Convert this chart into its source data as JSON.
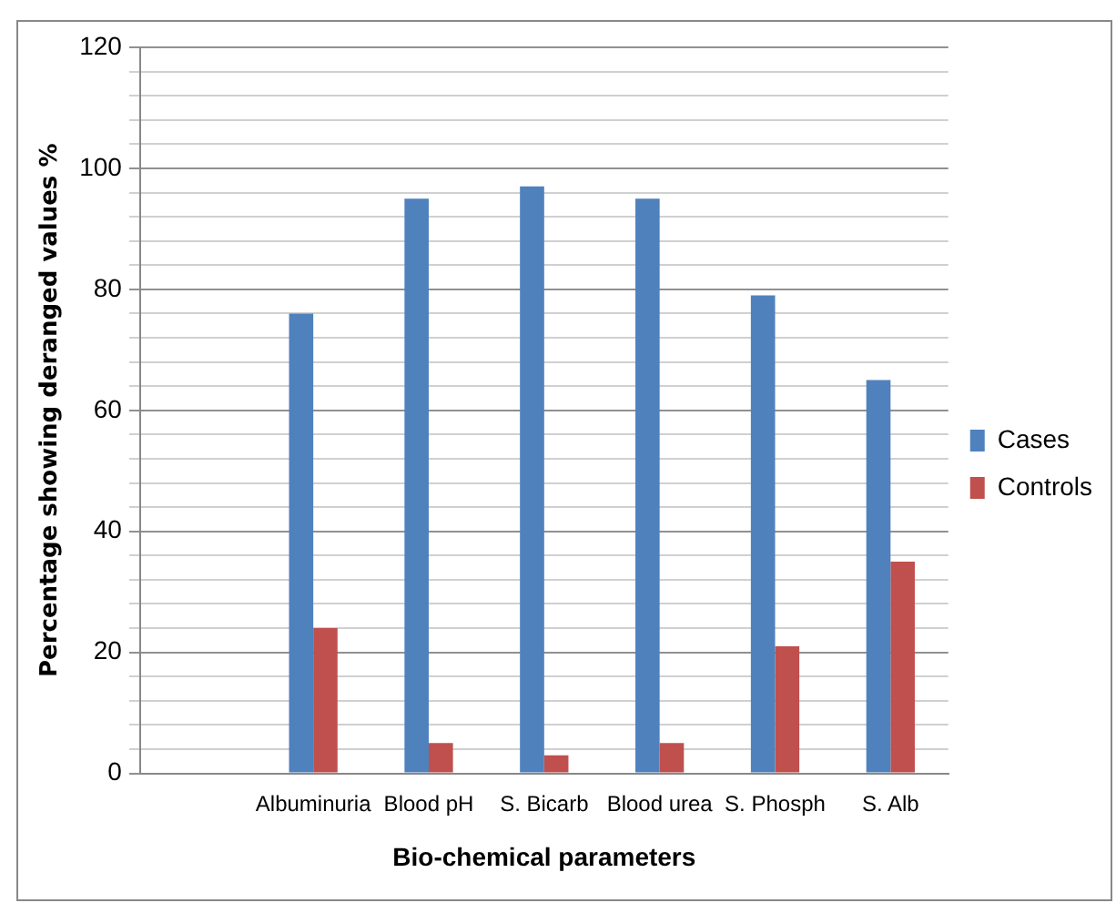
{
  "chart_data": {
    "type": "bar",
    "xlabel": "Bio-chemical parameters",
    "ylabel": "Percentage showing deranged values %",
    "categories": [
      null,
      "Albuminuria",
      "Blood pH",
      "S. Bicarb",
      "Blood urea",
      "S. Phosph",
      "S. Alb"
    ],
    "series": [
      {
        "name": "Cases",
        "color": "#4f81bd",
        "values": [
          null,
          76,
          95,
          97,
          95,
          79,
          65
        ]
      },
      {
        "name": "Controls",
        "color": "#c0504d",
        "values": [
          null,
          24,
          5,
          3,
          5,
          21,
          35
        ]
      }
    ],
    "ylim": [
      0,
      120
    ],
    "yticks": [
      0,
      {
        "value": 4,
        "label": null
      },
      {
        "value": 8,
        "label": null
      },
      {
        "value": 12,
        "label": null
      },
      {
        "value": 16,
        "label": null
      },
      20,
      {
        "value": 24,
        "label": null
      },
      {
        "value": 28,
        "label": null
      },
      {
        "value": 32,
        "label": null
      },
      {
        "value": 36,
        "label": null
      },
      40,
      {
        "value": 44,
        "label": null
      },
      {
        "value": 48,
        "label": null
      },
      {
        "value": 52,
        "label": null
      },
      {
        "value": 56,
        "label": null
      },
      60,
      {
        "value": 64,
        "label": null
      },
      {
        "value": 68,
        "label": null
      },
      {
        "value": 72,
        "label": null
      },
      {
        "value": 76,
        "label": null
      },
      80,
      {
        "value": 84,
        "label": null
      },
      {
        "value": 88,
        "label": null
      },
      {
        "value": 92,
        "label": null
      },
      {
        "value": 96,
        "label": null
      },
      100,
      {
        "value": 104,
        "label": null
      },
      {
        "value": 108,
        "label": null
      },
      {
        "value": 112,
        "label": null
      },
      {
        "value": 116,
        "label": null
      },
      120
    ],
    "grid": "y",
    "legend": "right"
  }
}
